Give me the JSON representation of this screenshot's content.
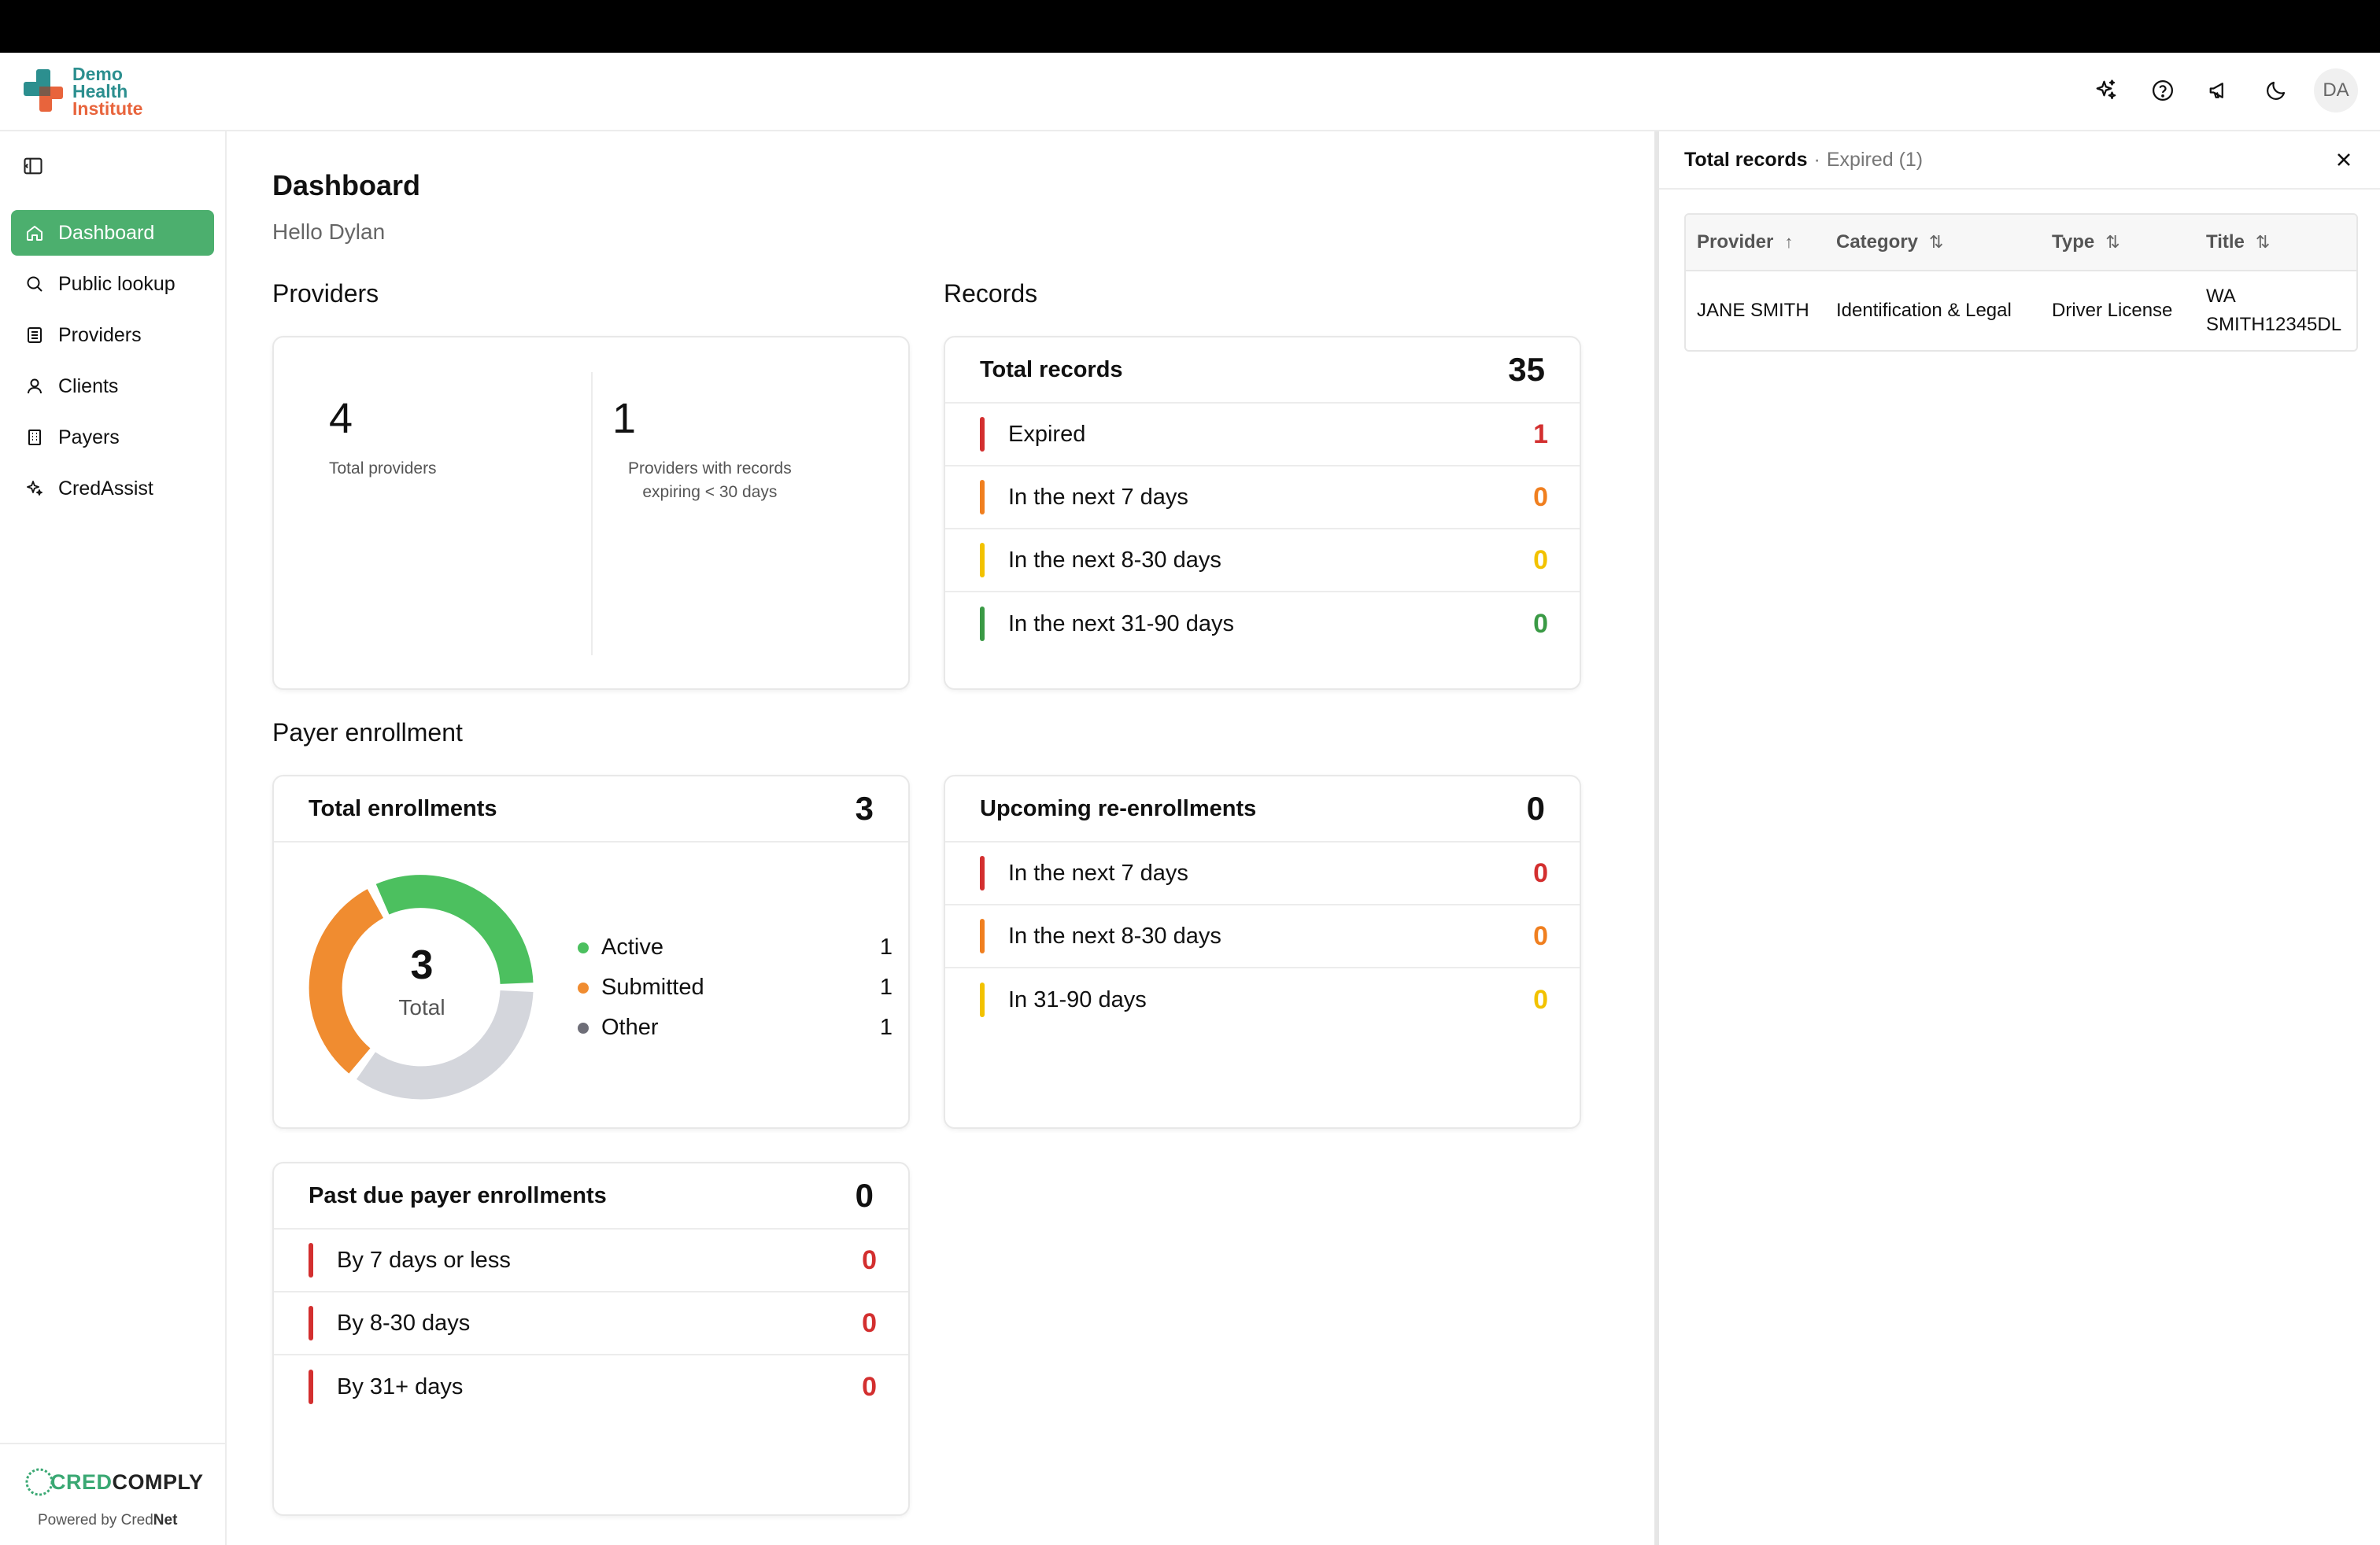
{
  "brand": {
    "line1": "Demo",
    "line2": "Health",
    "line3": "Institute",
    "teal": "#2c8f8f",
    "orange": "#e8643c"
  },
  "header": {
    "icons": [
      "sparkle-icon",
      "help-icon",
      "megaphone-icon",
      "moon-icon"
    ],
    "avatar": "DA"
  },
  "sidebar": {
    "items": [
      {
        "label": "Dashboard",
        "icon": "home-icon",
        "active": true
      },
      {
        "label": "Public lookup",
        "icon": "search-icon"
      },
      {
        "label": "Providers",
        "icon": "list-icon"
      },
      {
        "label": "Clients",
        "icon": "user-icon"
      },
      {
        "label": "Payers",
        "icon": "building-icon"
      },
      {
        "label": "CredAssist",
        "icon": "sparkle-icon"
      }
    ],
    "footer": {
      "cred": "CRED",
      "comply": "COMPLY",
      "powered_prefix": "Powered by Cred",
      "powered_bold": "Net"
    }
  },
  "main": {
    "title": "Dashboard",
    "greeting": "Hello Dylan",
    "providers": {
      "section": "Providers",
      "total_value": "4",
      "total_label": "Total providers",
      "expiring_value": "1",
      "expiring_label_1": "Providers with records",
      "expiring_label_2": "expiring < 30 days"
    },
    "records": {
      "section": "Records",
      "title": "Total records",
      "total": "35",
      "rows": [
        {
          "label": "Expired",
          "value": "1",
          "color": "#d32f2f"
        },
        {
          "label": "In the next 7 days",
          "value": "0",
          "color": "#f07f1f"
        },
        {
          "label": "In the next 8-30 days",
          "value": "0",
          "color": "#f2c200"
        },
        {
          "label": "In the next 31-90 days",
          "value": "0",
          "color": "#3a9a45"
        }
      ]
    },
    "payer": {
      "section": "Payer enrollment",
      "title": "Total enrollments",
      "total": "3",
      "donut_value": "3",
      "donut_label": "Total",
      "legend": [
        {
          "label": "Active",
          "value": "1",
          "color": "#4cc05f"
        },
        {
          "label": "Submitted",
          "value": "1",
          "color": "#f08c30"
        },
        {
          "label": "Other",
          "value": "1",
          "color": "#6e6e78"
        }
      ]
    },
    "reenroll": {
      "title": "Upcoming re-enrollments",
      "total": "0",
      "rows": [
        {
          "label": "In the next 7 days",
          "value": "0",
          "color": "#d32f2f"
        },
        {
          "label": "In the next 8-30 days",
          "value": "0",
          "color": "#f07f1f"
        },
        {
          "label": "In 31-90 days",
          "value": "0",
          "color": "#f2c200"
        }
      ]
    },
    "pastdue": {
      "title": "Past due payer enrollments",
      "total": "0",
      "rows": [
        {
          "label": "By 7 days or less",
          "value": "0",
          "color": "#d32f2f"
        },
        {
          "label": "By 8-30 days",
          "value": "0",
          "color": "#d32f2f"
        },
        {
          "label": "By 31+ days",
          "value": "0",
          "color": "#d32f2f"
        }
      ]
    }
  },
  "panel": {
    "title": "Total records",
    "separator": "·",
    "subtitle": "Expired (1)",
    "columns": [
      {
        "label": "Provider",
        "sort": "↑"
      },
      {
        "label": "Category",
        "sort": "⇅"
      },
      {
        "label": "Type",
        "sort": "⇅"
      },
      {
        "label": "Title",
        "sort": "⇅"
      }
    ],
    "rows": [
      {
        "provider": "JANE SMITH",
        "category": "Identification & Legal",
        "type": "Driver License",
        "title_1": "WA",
        "title_2": "SMITH12345DL"
      }
    ]
  }
}
